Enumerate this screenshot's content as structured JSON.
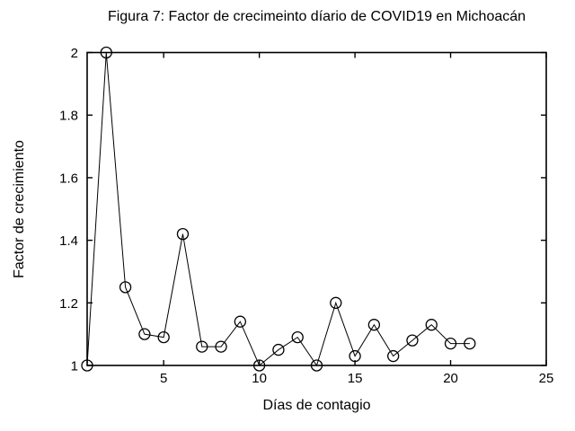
{
  "figure": {
    "background_color": "#ffffff",
    "foreground_color": "#000000"
  },
  "chart_data": {
    "type": "line",
    "title": "Figura 7: Factor de crecimeinto díario de COVID19 en Michoacán",
    "xlabel": "Días de contagio",
    "ylabel": "Factor de crecimiento",
    "x": [
      1,
      2,
      3,
      4,
      5,
      6,
      7,
      8,
      9,
      10,
      11,
      12,
      13,
      14,
      15,
      16,
      17,
      18,
      19,
      20,
      21
    ],
    "y": [
      1.0,
      2.0,
      1.25,
      1.1,
      1.09,
      1.42,
      1.06,
      1.06,
      1.14,
      1.0,
      1.05,
      1.09,
      1.0,
      1.2,
      1.03,
      1.13,
      1.03,
      1.08,
      1.13,
      1.07,
      1.07
    ],
    "xlim": [
      1,
      25
    ],
    "ylim": [
      1,
      2
    ],
    "xticks": [
      5,
      10,
      15,
      20,
      25
    ],
    "xtick_labels": [
      "5",
      "10",
      "15",
      "20",
      "25"
    ],
    "yticks": [
      1,
      1.2,
      1.4,
      1.6,
      1.8,
      2
    ],
    "ytick_labels": [
      "1",
      "1.2",
      "1.4",
      "1.6",
      "1.8",
      "2"
    ],
    "grid": false,
    "legend": null,
    "marker": "open-circle",
    "line_color": "#000000",
    "marker_color": "#000000"
  }
}
